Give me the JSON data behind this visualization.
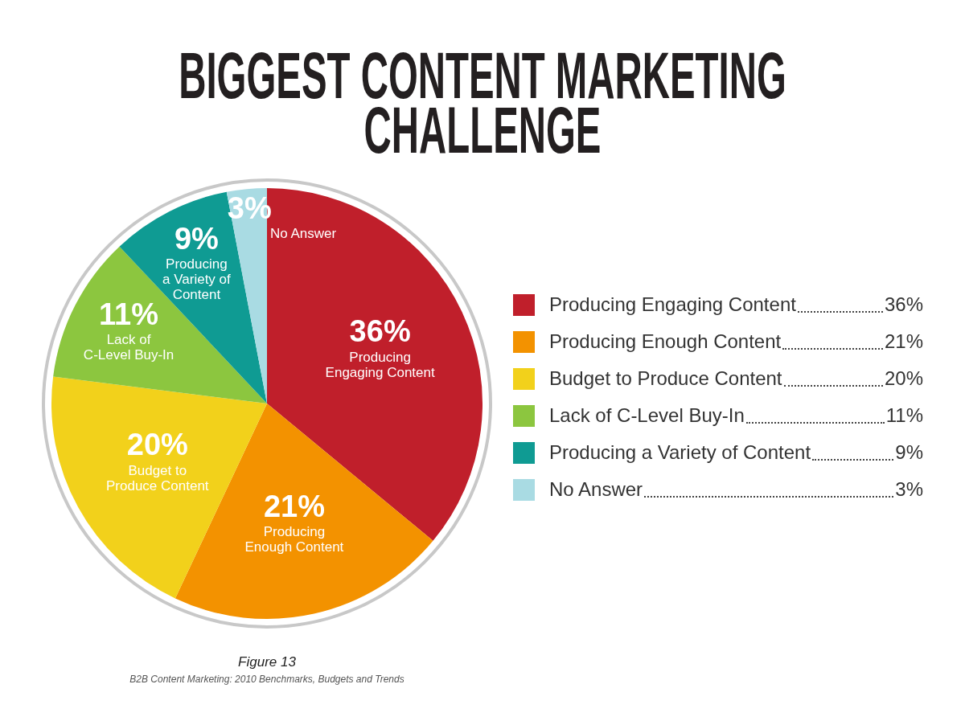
{
  "chart_data": {
    "type": "pie",
    "title": "BIGGEST CONTENT MARKETING CHALLENGE",
    "categories": [
      "Producing Engaging Content",
      "Producing Enough Content",
      "Budget to Produce Content",
      "Lack of C-Level Buy-In",
      "Producing a Variety of Content",
      "No Answer"
    ],
    "values": [
      36,
      21,
      20,
      11,
      9,
      3
    ],
    "value_labels": [
      "36%",
      "21%",
      "20%",
      "11%",
      "9%",
      "3%"
    ],
    "colors": [
      "#c01f2b",
      "#f39200",
      "#f2d11b",
      "#8cc63f",
      "#0f9b93",
      "#a9dbe3"
    ],
    "legend": "right",
    "annotations": [
      "Figure 13",
      "B2B Content Marketing: 2010 Benchmarks, Budgets and Trends"
    ]
  }
}
